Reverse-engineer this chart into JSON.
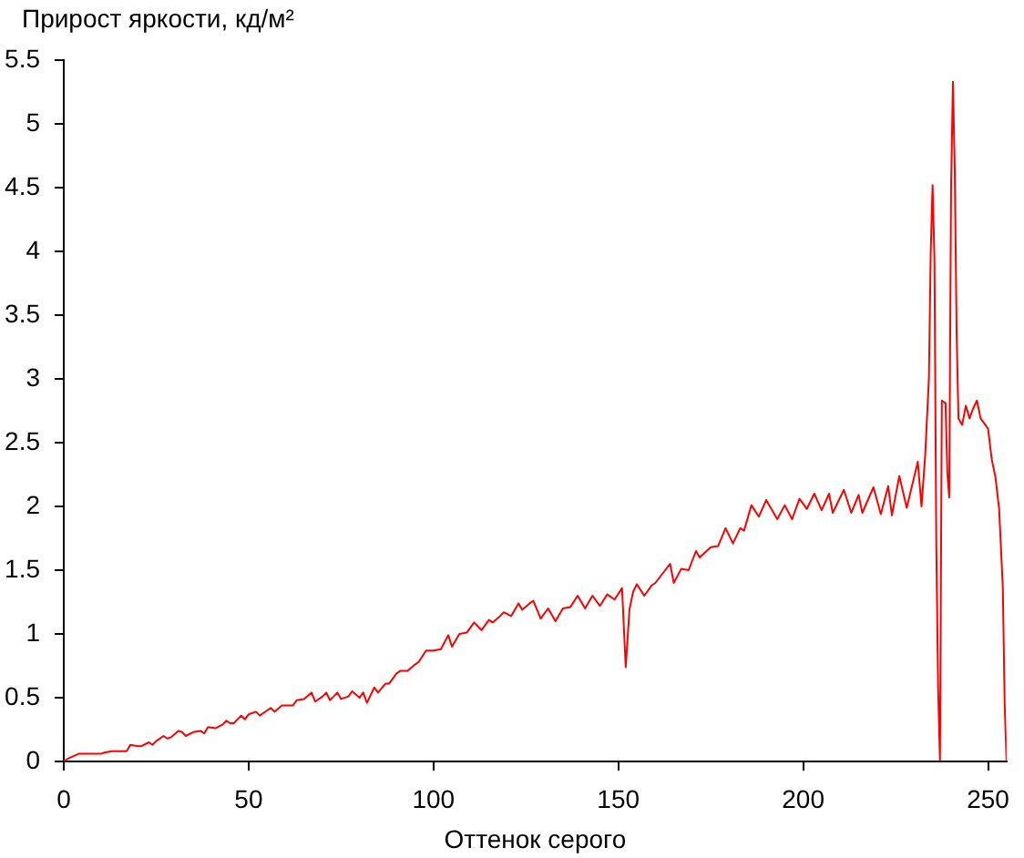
{
  "chart_data": {
    "type": "line",
    "ylabel": "Прирост яркости, кд/м²",
    "xlabel": "Оттенок серого",
    "x": [
      0,
      1,
      4,
      10,
      11,
      13,
      17,
      18,
      20,
      21,
      23,
      24,
      25,
      27,
      28,
      29,
      31,
      32,
      33,
      35,
      37,
      38,
      39,
      41,
      43,
      44,
      45,
      46,
      48,
      49,
      50,
      52,
      53,
      55,
      56,
      57,
      59,
      62,
      63,
      65,
      67,
      68,
      70,
      71,
      72,
      73,
      74,
      75,
      77,
      78,
      80,
      81,
      82,
      84,
      85,
      87,
      88,
      90,
      91,
      93,
      95,
      96,
      98,
      100,
      102,
      104,
      105,
      107,
      109,
      111,
      113,
      115,
      116,
      118,
      119,
      121,
      123,
      124,
      126,
      127,
      129,
      131,
      133,
      135,
      137,
      139,
      141,
      143,
      145,
      147,
      149,
      151,
      152,
      153,
      154,
      155,
      157,
      159,
      160,
      164,
      165,
      167,
      169,
      171,
      172,
      175,
      177,
      179,
      181,
      183,
      184,
      186,
      188,
      190,
      193,
      195,
      197,
      199,
      200,
      201,
      203,
      205,
      207,
      208,
      211,
      213,
      215,
      216,
      219,
      221,
      223,
      224,
      226,
      228,
      231,
      232,
      233,
      234,
      234.5,
      235,
      235.5,
      236,
      236.5,
      237,
      237.5,
      238.5,
      239,
      239.5,
      240,
      240.5,
      241,
      241.5,
      242,
      243,
      244,
      245,
      246,
      247,
      248,
      250,
      251,
      252,
      253,
      254,
      254.5,
      255
    ],
    "values": [
      0,
      0.02,
      0.06,
      0.06,
      0.07,
      0.08,
      0.08,
      0.13,
      0.12,
      0.12,
      0.15,
      0.13,
      0.16,
      0.2,
      0.18,
      0.19,
      0.24,
      0.23,
      0.2,
      0.23,
      0.24,
      0.22,
      0.27,
      0.26,
      0.29,
      0.32,
      0.3,
      0.3,
      0.36,
      0.33,
      0.37,
      0.39,
      0.36,
      0.4,
      0.42,
      0.39,
      0.44,
      0.44,
      0.48,
      0.49,
      0.54,
      0.47,
      0.51,
      0.54,
      0.48,
      0.51,
      0.54,
      0.49,
      0.51,
      0.55,
      0.5,
      0.54,
      0.46,
      0.58,
      0.54,
      0.61,
      0.61,
      0.69,
      0.71,
      0.71,
      0.76,
      0.78,
      0.87,
      0.87,
      0.88,
      0.99,
      0.9,
      1.0,
      1.01,
      1.09,
      1.03,
      1.11,
      1.09,
      1.14,
      1.17,
      1.14,
      1.24,
      1.19,
      1.24,
      1.26,
      1.12,
      1.2,
      1.1,
      1.2,
      1.21,
      1.3,
      1.2,
      1.3,
      1.22,
      1.31,
      1.27,
      1.36,
      0.74,
      1.19,
      1.33,
      1.39,
      1.3,
      1.38,
      1.4,
      1.55,
      1.4,
      1.51,
      1.5,
      1.65,
      1.6,
      1.68,
      1.69,
      1.83,
      1.71,
      1.83,
      1.81,
      2.01,
      1.92,
      2.05,
      1.9,
      2.01,
      1.9,
      2.06,
      2.02,
      1.98,
      2.1,
      1.97,
      2.1,
      1.95,
      2.13,
      1.95,
      2.09,
      1.95,
      2.15,
      1.94,
      2.16,
      1.93,
      2.24,
      1.99,
      2.35,
      2.0,
      2.4,
      3.0,
      4.0,
      4.52,
      3.95,
      1.71,
      0.57,
      0,
      2.83,
      2.81,
      2.26,
      2.07,
      4.5,
      5.33,
      4.64,
      3.36,
      2.69,
      2.64,
      2.79,
      2.69,
      2.77,
      2.83,
      2.69,
      2.61,
      2.37,
      2.23,
      1.98,
      1.36,
      0.45,
      0
    ],
    "color": "#ff0000",
    "xlim": [
      0,
      255
    ],
    "ylim": [
      0,
      5.5
    ],
    "xticks": [
      0,
      50,
      100,
      150,
      200,
      250
    ],
    "yticks": [
      0,
      0.5,
      1,
      1.5,
      2,
      2.5,
      3,
      3.5,
      4,
      4.5,
      5,
      5.5
    ],
    "grid": false,
    "legend": false,
    "marker": "none"
  }
}
